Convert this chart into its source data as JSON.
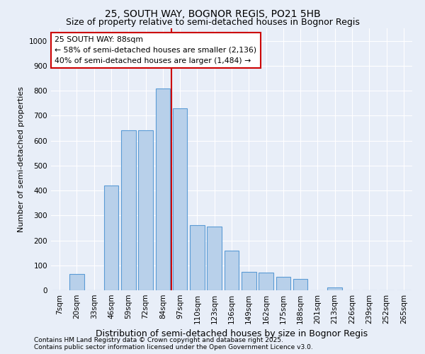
{
  "title1": "25, SOUTH WAY, BOGNOR REGIS, PO21 5HB",
  "title2": "Size of property relative to semi-detached houses in Bognor Regis",
  "xlabel": "Distribution of semi-detached houses by size in Bognor Regis",
  "ylabel": "Number of semi-detached properties",
  "footer1": "Contains HM Land Registry data © Crown copyright and database right 2025.",
  "footer2": "Contains public sector information licensed under the Open Government Licence v3.0.",
  "categories": [
    "7sqm",
    "20sqm",
    "33sqm",
    "46sqm",
    "59sqm",
    "72sqm",
    "84sqm",
    "97sqm",
    "110sqm",
    "123sqm",
    "136sqm",
    "149sqm",
    "162sqm",
    "175sqm",
    "188sqm",
    "201sqm",
    "213sqm",
    "226sqm",
    "239sqm",
    "252sqm",
    "265sqm"
  ],
  "values": [
    0,
    65,
    0,
    420,
    640,
    640,
    810,
    730,
    260,
    255,
    160,
    75,
    70,
    55,
    45,
    0,
    10,
    0,
    0,
    0,
    0
  ],
  "bar_color": "#b8d0ea",
  "bar_edge_color": "#5b9bd5",
  "line_color": "#cc0000",
  "line_x_index": 6.5,
  "legend_title": "25 SOUTH WAY: 88sqm",
  "legend_line1": "← 58% of semi-detached houses are smaller (2,136)",
  "legend_line2": "40% of semi-detached houses are larger (1,484) →",
  "legend_box_color": "#ffffff",
  "legend_box_edgecolor": "#cc0000",
  "ylim": [
    0,
    1050
  ],
  "yticks": [
    0,
    100,
    200,
    300,
    400,
    500,
    600,
    700,
    800,
    900,
    1000
  ],
  "bg_color": "#e8eef8",
  "grid_color": "#ffffff",
  "title1_fontsize": 10,
  "title2_fontsize": 9,
  "xlabel_fontsize": 9,
  "ylabel_fontsize": 8,
  "tick_fontsize": 7.5,
  "footer_fontsize": 6.5
}
